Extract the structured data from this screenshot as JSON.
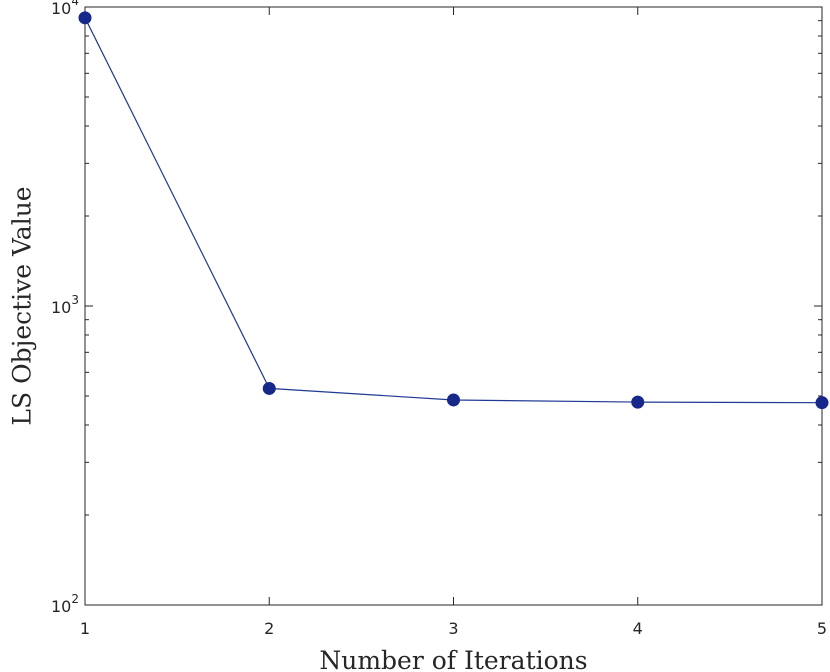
{
  "chart_data": {
    "type": "line",
    "title": "",
    "xlabel": "Number of Iterations",
    "ylabel": "LS Objective Value",
    "x": [
      1,
      2,
      3,
      4,
      5
    ],
    "series": [
      {
        "values": [
          9200,
          530,
          485,
          477,
          475
        ]
      }
    ],
    "xlim": [
      1,
      5
    ],
    "ylim": [
      100,
      10000
    ],
    "yscale": "log",
    "x_tick_labels": [
      "1",
      "2",
      "3",
      "4",
      "5"
    ],
    "y_tick_labels": [
      {
        "base": "10",
        "exp": "2",
        "value": 100
      },
      {
        "base": "10",
        "exp": "3",
        "value": 1000
      },
      {
        "base": "10",
        "exp": "4",
        "value": 10000
      }
    ],
    "grid": false,
    "line_color": "#1f3a93",
    "marker_color": "#16298a"
  }
}
